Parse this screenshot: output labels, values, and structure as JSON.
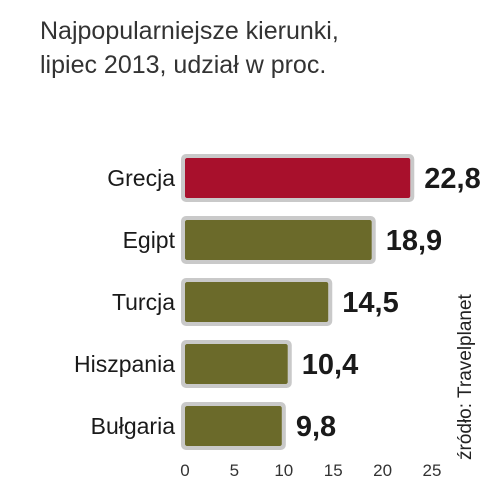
{
  "title_line1": "Najpopularniejsze kierunki,",
  "title_line2": "lipiec 2013, udział w proc.",
  "source": "źródło: Travelplanet",
  "chart_data": {
    "type": "bar",
    "orientation": "horizontal",
    "categories": [
      "Grecja",
      "Egipt",
      "Turcja",
      "Hiszpania",
      "Bułgaria"
    ],
    "values": [
      22.8,
      18.9,
      14.5,
      10.4,
      9.8
    ],
    "value_labels": [
      "22,8",
      "18,9",
      "14,5",
      "10,4",
      "9,8"
    ],
    "xticks": [
      "0",
      "5",
      "10",
      "15",
      "20",
      "25"
    ],
    "xlim": [
      0,
      25
    ],
    "colors": {
      "highlight": "#a8102c",
      "default": "#6b6a2a",
      "outline": "#c9c9c9"
    },
    "highlight_index": 0,
    "grid": false
  }
}
